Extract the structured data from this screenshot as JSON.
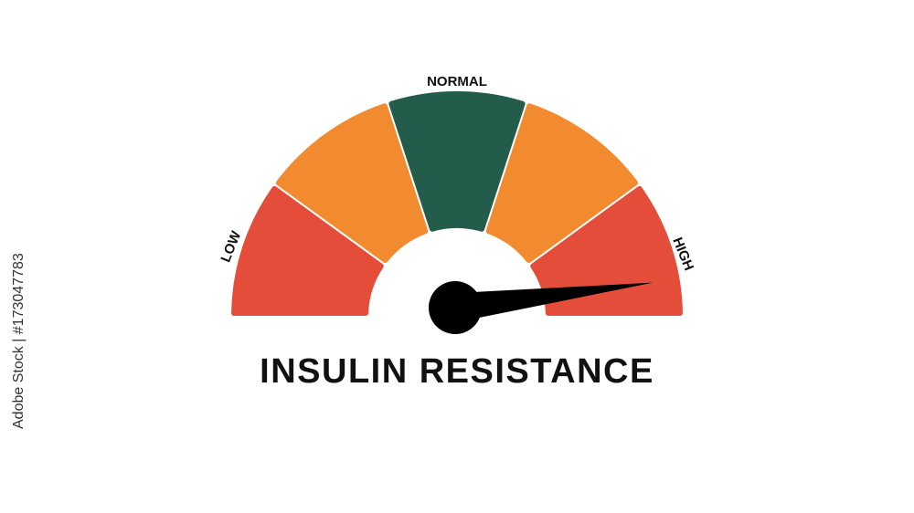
{
  "gauge": {
    "title": "INSULIN RESISTANCE",
    "labels": {
      "low": "LOW",
      "normal": "NORMAL",
      "high": "HIGH"
    },
    "segments": [
      {
        "color": "#e44d3a"
      },
      {
        "color": "#f28b2f"
      },
      {
        "color": "#245c4b"
      },
      {
        "color": "#f28b2f"
      },
      {
        "color": "#e44d3a"
      }
    ],
    "needle_value_percent": 96,
    "needle_color": "#000000"
  },
  "watermark": {
    "side_text": "Adobe Stock | #173047783",
    "overlay_text": "Adobe Stock"
  }
}
